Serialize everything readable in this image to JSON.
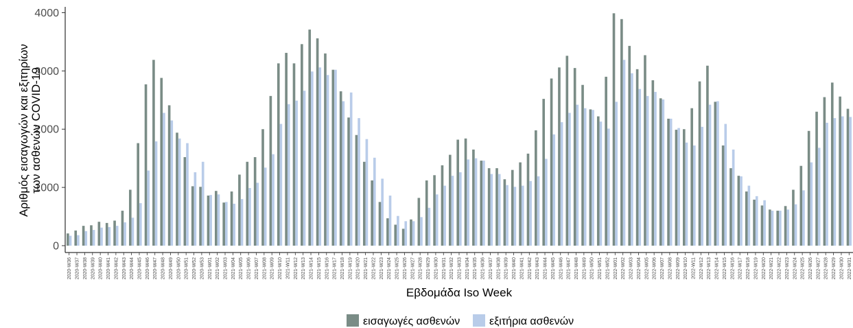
{
  "chart_data": {
    "type": "bar",
    "xlabel": "Εβδομάδα Iso Week",
    "ylabel_lines": [
      "Αριθμός εισαγωγών και εξιτηρίων",
      "των ασθενών COVID-19"
    ],
    "ylim": [
      0,
      4100
    ],
    "yticks": [
      0,
      1000,
      2000,
      3000,
      4000
    ],
    "ytick_labels": [
      "0",
      "1000",
      "2000",
      "3000",
      "4000"
    ],
    "grid": false,
    "legend_position": "bottom",
    "categories": [
      "2020-W36",
      "2020-W37",
      "2020-W38",
      "2020-W39",
      "2020-W40",
      "2020-W41",
      "2020-W42",
      "2020-W43",
      "2020-W44",
      "2020-W45",
      "2020-W46",
      "2020-W47",
      "2020-W48",
      "2020-W49",
      "2020-W50",
      "2020-W51",
      "2020-W52",
      "2020-W53",
      "2021-W01",
      "2021-W02",
      "2021-W03",
      "2021-W04",
      "2021-W05",
      "2021-W06",
      "2021-W07",
      "2021-W08",
      "2021-W09",
      "2021-W10",
      "2021-W11",
      "2021-W12",
      "2021-W13",
      "2021-W14",
      "2021-W15",
      "2021-W16",
      "2021-W17",
      "2021-W18",
      "2021-W19",
      "2021-W20",
      "2021-W21",
      "2021-W22",
      "2021-W23",
      "2021-W24",
      "2021-W25",
      "2021-W26",
      "2021-W27",
      "2021-W28",
      "2021-W29",
      "2021-W30",
      "2021-W31",
      "2021-W32",
      "2021-W33",
      "2021-W34",
      "2021-W35",
      "2021-W36",
      "2021-W37",
      "2021-W38",
      "2021-W39",
      "2021-W40",
      "2021-W41",
      "2021-W42",
      "2021-W43",
      "2021-W44",
      "2021-W45",
      "2021-W46",
      "2021-W47",
      "2021-W48",
      "2021-W49",
      "2021-W50",
      "2021-W51",
      "2021-W52",
      "2022-W01",
      "2022-W02",
      "2022-W03",
      "2022-W04",
      "2022-W05",
      "2022-W06",
      "2022-W07",
      "2022-W08",
      "2022-W09",
      "2022-W10",
      "2022-W11",
      "2022-W12",
      "2022-W13",
      "2022-W14",
      "2022-W15",
      "2022-W16",
      "2022-W17",
      "2022-W18",
      "2022-W19",
      "2022-W20",
      "2022-W21",
      "2022-W22",
      "2022-W23",
      "2022-W24",
      "2022-W25",
      "2022-W26",
      "2022-W27",
      "2022-W28",
      "2022-W29",
      "2022-W30",
      "2022-W31"
    ],
    "series": [
      {
        "name": "εισαγωγές ασθενών",
        "color": "#7a8c86",
        "values": [
          210,
          260,
          340,
          350,
          410,
          390,
          430,
          600,
          960,
          1760,
          2770,
          3190,
          2880,
          2410,
          1940,
          1520,
          1020,
          1010,
          860,
          940,
          740,
          930,
          1220,
          1440,
          1520,
          2000,
          2570,
          3130,
          3310,
          3130,
          3460,
          3710,
          3560,
          3300,
          3020,
          2650,
          2200,
          1900,
          1440,
          1120,
          750,
          470,
          360,
          290,
          450,
          820,
          1120,
          1210,
          1380,
          1560,
          1820,
          1840,
          1650,
          1460,
          1330,
          1330,
          1140,
          1300,
          1430,
          1580,
          1980,
          2520,
          2870,
          3060,
          3260,
          3050,
          2760,
          2340,
          2220,
          2900,
          3990,
          3890,
          3430,
          3030,
          3270,
          2840,
          2530,
          2180,
          1990,
          2000,
          2360,
          2820,
          3090,
          2470,
          1720,
          1330,
          1200,
          930,
          790,
          690,
          620,
          600,
          680,
          960,
          1370,
          1970,
          2300,
          2550,
          2800,
          2560,
          2350
        ]
      },
      {
        "name": "εξιτήρια ασθενών",
        "color": "#b9cce9",
        "values": [
          170,
          180,
          250,
          270,
          310,
          320,
          340,
          400,
          480,
          730,
          1290,
          1790,
          2280,
          2150,
          1840,
          1760,
          1260,
          1440,
          870,
          880,
          750,
          720,
          800,
          990,
          1080,
          1340,
          1570,
          2090,
          2430,
          2490,
          2660,
          2990,
          3060,
          2930,
          3020,
          2480,
          2630,
          2190,
          1830,
          1510,
          1150,
          860,
          510,
          420,
          420,
          490,
          650,
          880,
          1030,
          1200,
          1260,
          1480,
          1500,
          1460,
          1230,
          1230,
          1040,
          1010,
          1030,
          1110,
          1190,
          1490,
          1910,
          2120,
          2280,
          2420,
          2360,
          2330,
          2130,
          2010,
          2470,
          3190,
          2960,
          2690,
          2570,
          2640,
          2510,
          2180,
          2020,
          1770,
          1720,
          2040,
          2420,
          2480,
          2090,
          1650,
          1190,
          1030,
          850,
          780,
          600,
          600,
          620,
          710,
          950,
          1430,
          1680,
          2110,
          2190,
          2220,
          2210
        ]
      }
    ]
  }
}
